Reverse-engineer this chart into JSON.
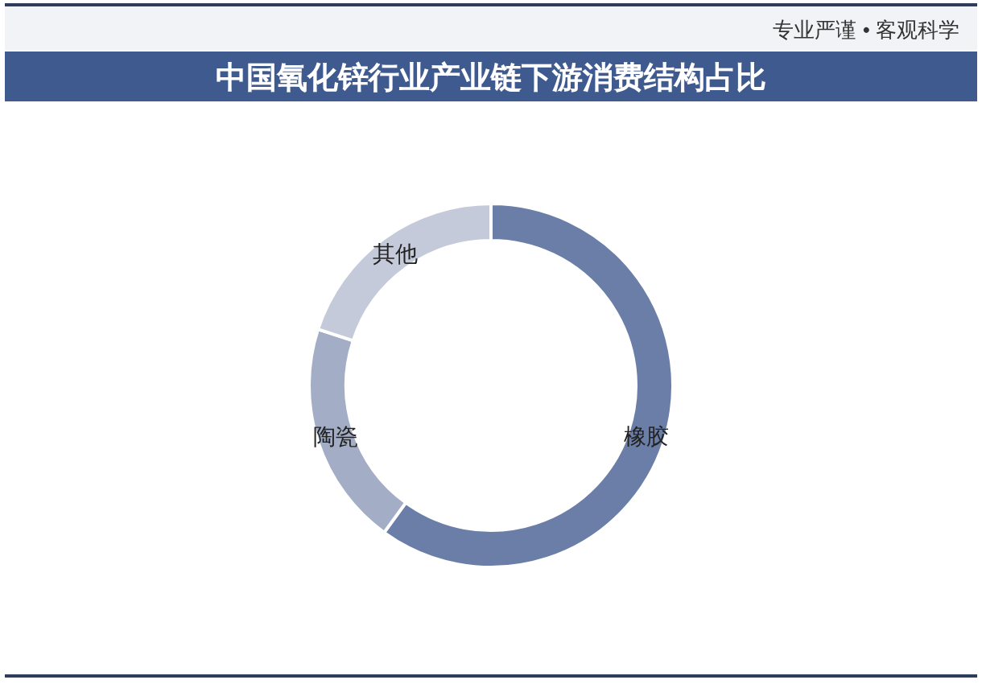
{
  "chart_data": {
    "type": "donut",
    "title": "中国氧化锌行业产业链下游消费结构占比",
    "categories": [
      "橡胶",
      "陶瓷",
      "其他"
    ],
    "values": [
      60,
      20,
      20
    ],
    "colors": [
      "#6a7ea7",
      "#a3aec6",
      "#c4cada"
    ],
    "annotations": [
      "专业严谨 • 客观科学"
    ]
  }
}
